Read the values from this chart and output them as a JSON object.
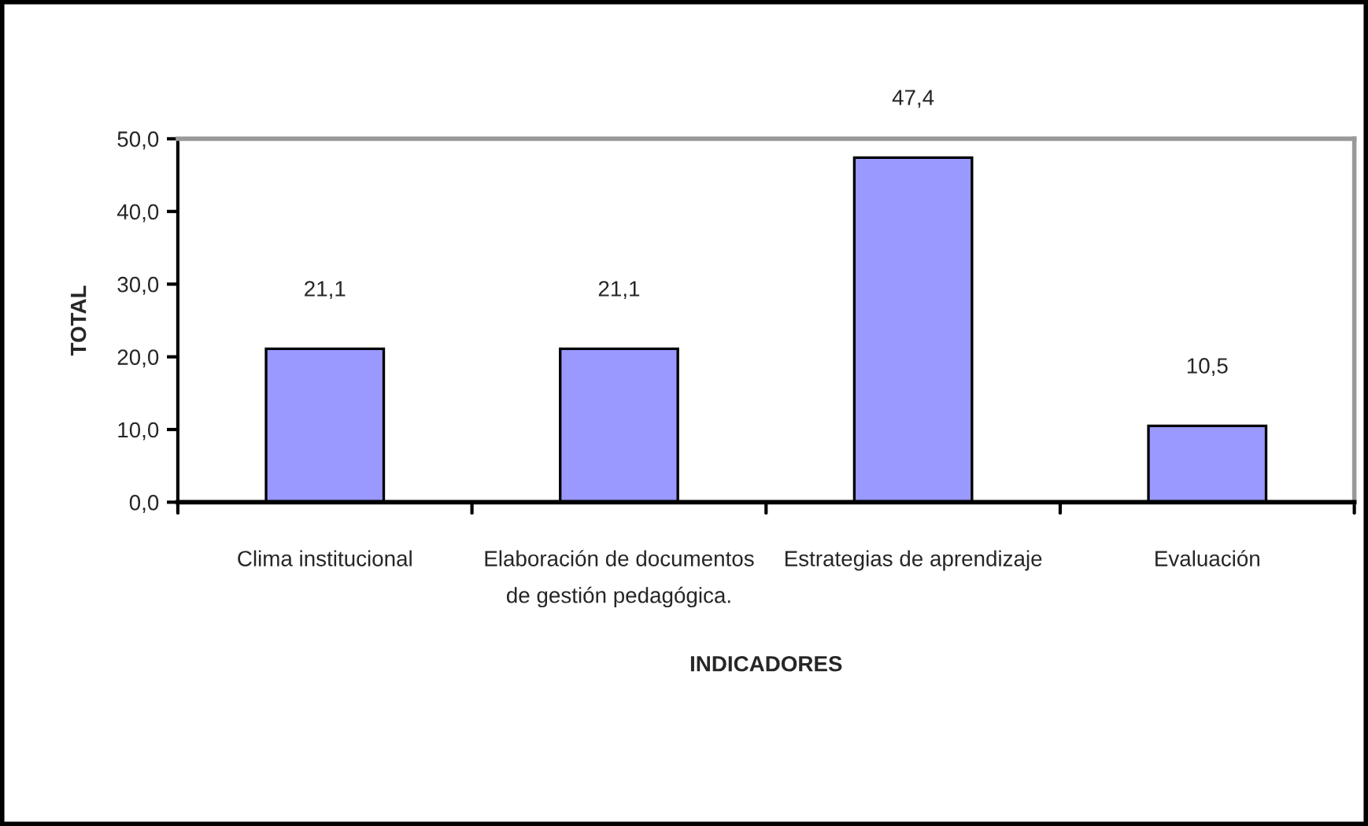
{
  "chart_data": {
    "type": "bar",
    "categories": [
      "Clima institucional",
      "Elaboración de documentos\nde gestión pedagógica.",
      "Estrategias de aprendizaje",
      "Evaluación"
    ],
    "values": [
      21.1,
      21.1,
      47.4,
      10.5
    ],
    "value_labels": [
      "21,1",
      "21,1",
      "47,4",
      "10,5"
    ],
    "color": "#9999ff",
    "xlabel": "INDICADORES",
    "ylabel": "TOTAL",
    "ylim": [
      0,
      50
    ],
    "yticks": [
      {
        "value": 0,
        "label": "0,0"
      },
      {
        "value": 10,
        "label": "10,0"
      },
      {
        "value": 20,
        "label": "20,0"
      },
      {
        "value": 30,
        "label": "30,0"
      },
      {
        "value": 40,
        "label": "40,0"
      },
      {
        "value": 50,
        "label": "50,0"
      }
    ],
    "grid": false,
    "legend": false
  }
}
